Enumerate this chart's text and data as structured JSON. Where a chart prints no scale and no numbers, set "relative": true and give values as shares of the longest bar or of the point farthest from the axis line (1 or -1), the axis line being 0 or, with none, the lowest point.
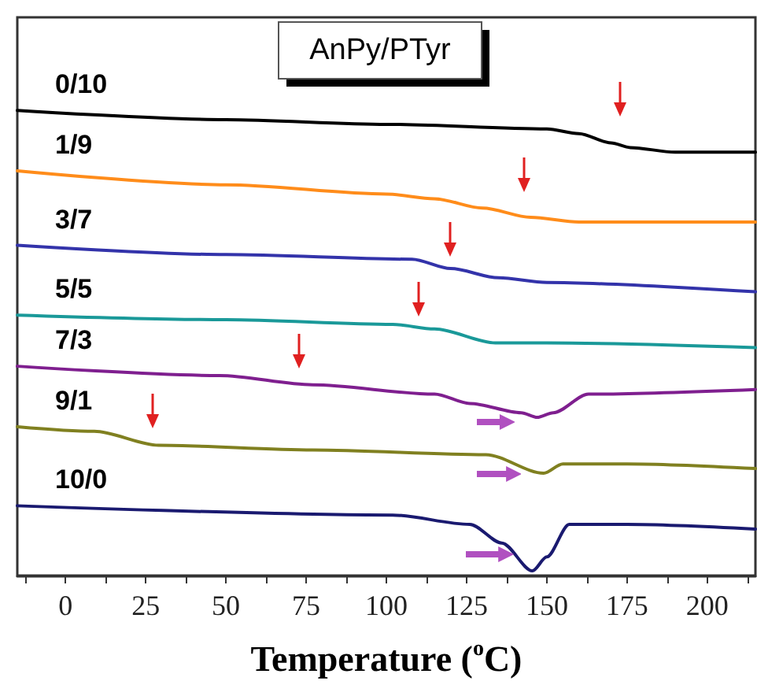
{
  "chart_data": {
    "type": "line",
    "title": "AnPy/PTyr",
    "xlabel": "Temperature ($^{o}$C)",
    "relative": true,
    "legend": false,
    "grid": false,
    "marker": "none",
    "line_style": "solid",
    "xlim": [
      -15,
      215
    ],
    "xticks": [
      {
        "value": -12.5,
        "label": null
      },
      0,
      {
        "value": 12.5,
        "label": null
      },
      25,
      {
        "value": 37.5,
        "label": null
      },
      50,
      {
        "value": 62.5,
        "label": null
      },
      75,
      {
        "value": 87.5,
        "label": null
      },
      100,
      {
        "value": 112.5,
        "label": null
      },
      125,
      {
        "value": 137.5,
        "label": null
      },
      150,
      {
        "value": 162.5,
        "label": null
      },
      175,
      {
        "value": 187.5,
        "label": null
      },
      200,
      {
        "value": 212.5,
        "label": null
      }
    ],
    "series": [
      {
        "name": "0/10",
        "color": "#000000",
        "x": [
          -15,
          50,
          100,
          150,
          160,
          170,
          176,
          190,
          215
        ],
        "values": [
          1.0,
          0.98,
          0.97,
          0.96,
          0.95,
          0.93,
          0.92,
          0.91,
          0.91
        ]
      },
      {
        "name": "1/9",
        "color": "#ff8c1a",
        "x": [
          -15,
          50,
          100,
          115,
          130,
          145,
          160,
          190,
          215
        ],
        "values": [
          0.87,
          0.84,
          0.82,
          0.81,
          0.79,
          0.77,
          0.76,
          0.76,
          0.76
        ]
      },
      {
        "name": "3/7",
        "color": "#3333aa",
        "x": [
          -15,
          50,
          108,
          120,
          135,
          150,
          215
        ],
        "values": [
          0.71,
          0.69,
          0.68,
          0.66,
          0.64,
          0.63,
          0.61
        ]
      },
      {
        "name": "5/5",
        "color": "#1a9999",
        "x": [
          -15,
          50,
          102,
          115,
          134,
          150,
          215
        ],
        "values": [
          0.56,
          0.55,
          0.54,
          0.53,
          0.5,
          0.5,
          0.49
        ]
      },
      {
        "name": "7/3",
        "color": "#7f1f8f",
        "x": [
          -15,
          48,
          77,
          115,
          126,
          142,
          147,
          152,
          163,
          215
        ],
        "values": [
          0.45,
          0.43,
          0.41,
          0.39,
          0.37,
          0.35,
          0.34,
          0.35,
          0.39,
          0.4
        ]
      },
      {
        "name": "9/1",
        "color": "#808020",
        "x": [
          -15,
          9,
          29,
          77,
          131,
          149,
          155,
          175,
          215
        ],
        "values": [
          0.32,
          0.31,
          0.28,
          0.27,
          0.26,
          0.22,
          0.24,
          0.24,
          0.23
        ]
      },
      {
        "name": "10/0",
        "color": "#1a1a70",
        "x": [
          -15,
          102,
          126,
          136,
          145.5,
          150,
          157,
          175,
          215
        ],
        "values": [
          0.15,
          0.13,
          0.11,
          0.07,
          0.01,
          0.04,
          0.11,
          0.11,
          0.1
        ]
      }
    ]
  }
}
